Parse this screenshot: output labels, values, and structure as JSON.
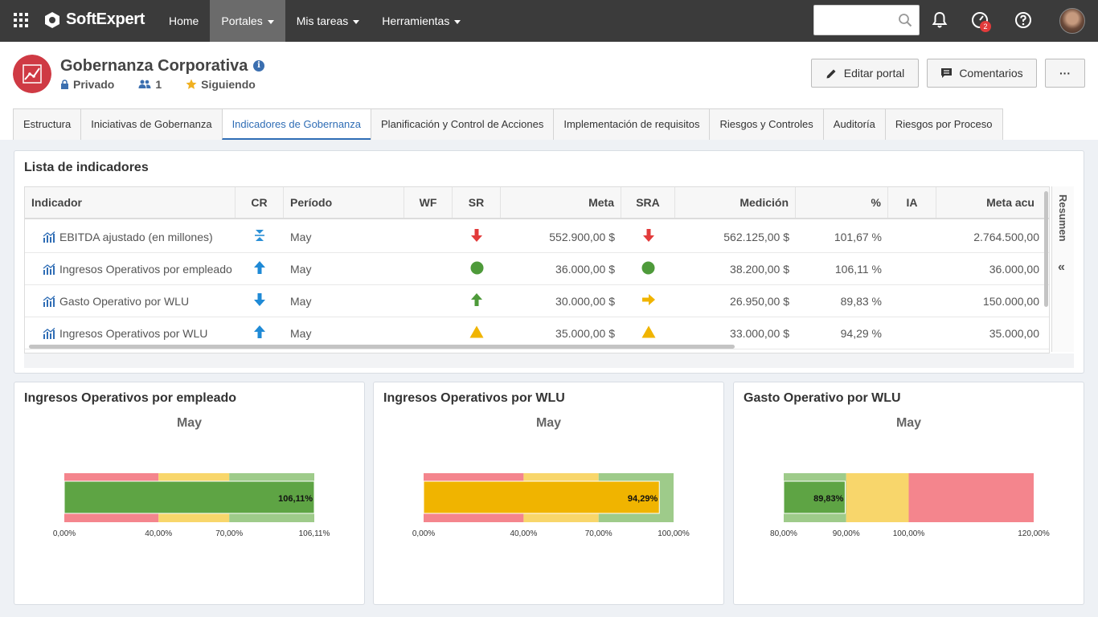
{
  "topbar": {
    "brand": "SoftExpert",
    "nav": [
      {
        "label": "Home",
        "caret": false,
        "active": false
      },
      {
        "label": "Portales",
        "caret": true,
        "active": true
      },
      {
        "label": "Mis tareas",
        "caret": true,
        "active": false
      },
      {
        "label": "Herramientas",
        "caret": true,
        "active": false
      }
    ],
    "search_value": "",
    "notification_count": "2"
  },
  "header": {
    "title": "Gobernanza Corporativa",
    "privacy": "Privado",
    "members": "1",
    "following": "Siguiendo",
    "edit_label": "Editar portal",
    "comments_label": "Comentarios",
    "more_label": "···"
  },
  "tabs": [
    "Estructura",
    "Iniciativas de Gobernanza",
    "Indicadores de Gobernanza",
    "Planificación y Control de Acciones",
    "Implementación de requisitos",
    "Riesgos y Controles",
    "Auditoría",
    "Riesgos por Proceso"
  ],
  "active_tab": 2,
  "list": {
    "title": "Lista de indicadores",
    "side_label": "Resumen",
    "side_arrow": "«",
    "columns": [
      "Indicador",
      "CR",
      "Período",
      "WF",
      "SR",
      "Meta",
      "SRA",
      "Medición",
      "%",
      "IA",
      "Meta acu"
    ],
    "rows": [
      {
        "name": "EBITDA ajustado (en millones)",
        "cr": "target",
        "period": "May",
        "wf": "",
        "sr": "down-red",
        "meta": "552.900,00 $",
        "sra": "down-red",
        "medicion": "562.125,00 $",
        "pct": "101,67 %",
        "ia": "",
        "meta_acu": "2.764.500,00"
      },
      {
        "name": "Ingresos Operativos por empleado",
        "cr": "up-blue",
        "period": "May",
        "wf": "",
        "sr": "circle-green",
        "meta": "36.000,00 $",
        "sra": "circle-green",
        "medicion": "38.200,00 $",
        "pct": "106,11 %",
        "ia": "",
        "meta_acu": "36.000,00"
      },
      {
        "name": "Gasto Operativo por WLU",
        "cr": "down-blue",
        "period": "May",
        "wf": "",
        "sr": "up-green",
        "meta": "30.000,00 $",
        "sra": "right-yellow",
        "medicion": "26.950,00 $",
        "pct": "89,83 %",
        "ia": "",
        "meta_acu": "150.000,00"
      },
      {
        "name": "Ingresos Operativos por WLU",
        "cr": "up-blue",
        "period": "May",
        "wf": "",
        "sr": "triangle-yellow",
        "meta": "35.000,00 $",
        "sra": "triangle-yellow",
        "medicion": "33.000,00 $",
        "pct": "94,29 %",
        "ia": "",
        "meta_acu": "35.000,00"
      }
    ]
  },
  "colors": {
    "red_zone": "#f4858d",
    "yellow_zone": "#f8d66b",
    "green_zone": "#9ecb8a",
    "green_bar": "#5ea444",
    "yellow_bar": "#f0b400",
    "accent": "#2f6db5"
  },
  "chart_data": [
    {
      "type": "bar",
      "title": "Ingresos Operativos por empleado",
      "subtitle": "May",
      "orientation": "horizontal-bullet",
      "xlim": [
        0,
        106.11
      ],
      "bands": [
        {
          "from": 0,
          "to": 40,
          "color": "red"
        },
        {
          "from": 40,
          "to": 70,
          "color": "yellow"
        },
        {
          "from": 70,
          "to": 106.11,
          "color": "green"
        }
      ],
      "value": 106.11,
      "value_label": "106,11%",
      "bar_color": "green",
      "ticks": [
        {
          "value": 0,
          "label": "0,00%"
        },
        {
          "value": 40,
          "label": "40,00%"
        },
        {
          "value": 70,
          "label": "70,00%"
        },
        {
          "value": 106.11,
          "label": "106,11%"
        }
      ]
    },
    {
      "type": "bar",
      "title": "Ingresos Operativos por WLU",
      "subtitle": "May",
      "orientation": "horizontal-bullet",
      "xlim": [
        0,
        100
      ],
      "bands": [
        {
          "from": 0,
          "to": 40,
          "color": "red"
        },
        {
          "from": 40,
          "to": 70,
          "color": "yellow"
        },
        {
          "from": 70,
          "to": 100,
          "color": "green"
        }
      ],
      "value": 94.29,
      "value_label": "94,29%",
      "bar_color": "yellow",
      "ticks": [
        {
          "value": 0,
          "label": "0,00%"
        },
        {
          "value": 40,
          "label": "40,00%"
        },
        {
          "value": 70,
          "label": "70,00%"
        },
        {
          "value": 100,
          "label": "100,00%"
        }
      ]
    },
    {
      "type": "bar",
      "title": "Gasto Operativo por WLU",
      "subtitle": "May",
      "orientation": "horizontal-bullet",
      "xlim": [
        80,
        120
      ],
      "bands": [
        {
          "from": 80,
          "to": 90,
          "color": "green"
        },
        {
          "from": 90,
          "to": 100,
          "color": "yellow"
        },
        {
          "from": 100,
          "to": 120,
          "color": "red"
        }
      ],
      "value": 89.83,
      "value_label": "89,83%",
      "bar_color": "green",
      "ticks": [
        {
          "value": 80,
          "label": "80,00%"
        },
        {
          "value": 90,
          "label": "90,00%"
        },
        {
          "value": 100,
          "label": "100,00%"
        },
        {
          "value": 120,
          "label": "120,00%"
        }
      ]
    }
  ]
}
